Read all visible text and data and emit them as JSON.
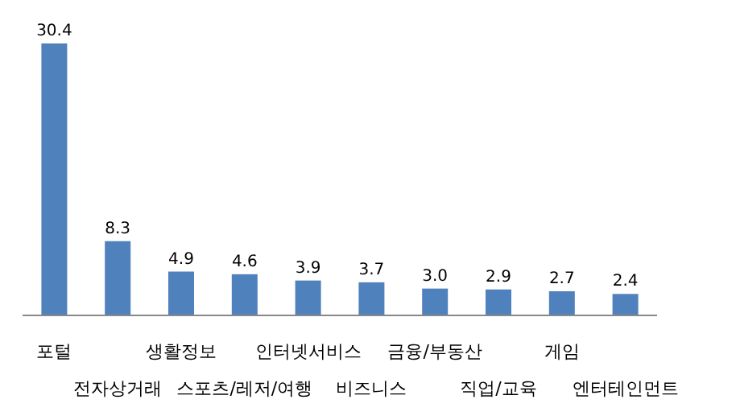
{
  "chart_data": {
    "type": "bar",
    "categories": [
      "포털",
      "전자상거래",
      "생활정보",
      "스포츠/레저/여행",
      "인터넷서비스",
      "비즈니스",
      "금융/부동산",
      "직업/교육",
      "게임",
      "엔터테인먼트"
    ],
    "values": [
      30.4,
      8.3,
      4.9,
      4.6,
      3.9,
      3.7,
      3.0,
      2.9,
      2.7,
      2.4
    ],
    "color": "#4f81bd",
    "value_labels": [
      "30.4",
      "8.3",
      "4.9",
      "4.6",
      "3.9",
      "3.7",
      "3.0",
      "2.9",
      "2.7",
      "2.4"
    ]
  }
}
